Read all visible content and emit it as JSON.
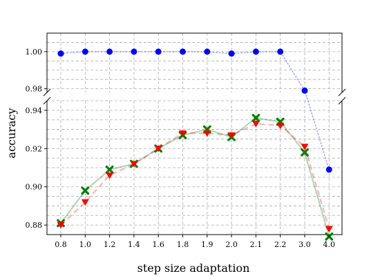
{
  "chart_data": {
    "type": "line",
    "xlabel": "step size adaptation",
    "ylabel": "accuracy",
    "categories": [
      "0.8",
      "1.0",
      "1.2",
      "1.4",
      "1.6",
      "1.8",
      "1.9",
      "2.0",
      "2.1",
      "2.2",
      "3.0",
      "4.0"
    ],
    "upper_panel": {
      "ylim": [
        0.978,
        1.01
      ],
      "yticks": [
        "0.98",
        "1.00"
      ],
      "ytick_values": [
        0.98,
        1.0
      ]
    },
    "lower_panel": {
      "ylim": [
        0.875,
        0.945
      ],
      "yticks": [
        "0.88",
        "0.90",
        "0.92",
        "0.94"
      ],
      "ytick_values": [
        0.88,
        0.9,
        0.92,
        0.94
      ]
    },
    "broken_axis": true,
    "grid": true,
    "series": [
      {
        "values": [
          0.999,
          1.0,
          1.0,
          1.0,
          1.0,
          1.0,
          1.0,
          0.999,
          1.0,
          1.0,
          0.979,
          0.909
        ],
        "color": "#0000ff",
        "line_style": "dotted",
        "marker": "circle"
      },
      {
        "values": [
          0.881,
          0.898,
          0.909,
          0.912,
          0.92,
          0.927,
          0.93,
          0.926,
          0.936,
          0.934,
          0.918,
          0.874
        ],
        "color": "#008000",
        "line_style": "solid",
        "marker": "x"
      },
      {
        "values": [
          0.88,
          0.892,
          0.906,
          0.912,
          0.92,
          0.928,
          0.928,
          0.927,
          0.933,
          0.932,
          0.921,
          0.878
        ],
        "color": "#ff0000",
        "line_style": "dashed",
        "marker": "triangle-down"
      }
    ]
  }
}
